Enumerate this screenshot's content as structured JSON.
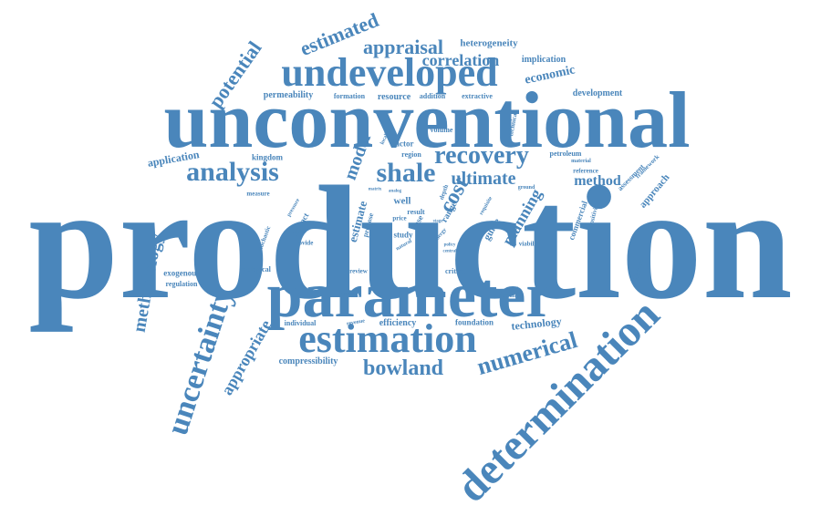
{
  "cloud": {
    "color": "#4a86bb",
    "words": [
      "production",
      "unconventional",
      "parameter",
      "undeveloped",
      "estimation",
      "determination",
      "uncertainty",
      "analysis",
      "shale",
      "recovery",
      "bowland",
      "numerical",
      "estimated",
      "appraisal",
      "correlation",
      "potential",
      "methodology",
      "appropriate",
      "cost",
      "model",
      "ultimate",
      "method",
      "planning",
      "economic",
      "estimate",
      "heterogeneity",
      "implication",
      "development",
      "permeability",
      "formation",
      "resource",
      "addition",
      "extractive",
      "technical",
      "volume",
      "factor",
      "region",
      "application",
      "kingdom",
      "measure",
      "impact",
      "pressure",
      "propose",
      "provide",
      "stochastic",
      "geological",
      "exogenous",
      "regulation",
      "review",
      "critical",
      "porosity",
      "individual",
      "revenue",
      "efficiency",
      "foundation",
      "technology",
      "compressibility",
      "account",
      "viability",
      "commercial",
      "sensitivity",
      "assessment",
      "approach",
      "framework",
      "reference",
      "material",
      "petroleum",
      "additional",
      "guide",
      "range",
      "requisite",
      "study",
      "result",
      "well",
      "price",
      "case",
      "depth",
      "ground",
      "natural",
      "policy",
      "central",
      "stage",
      "energy",
      "matrix",
      "locality",
      "analog",
      "estimated"
    ]
  }
}
